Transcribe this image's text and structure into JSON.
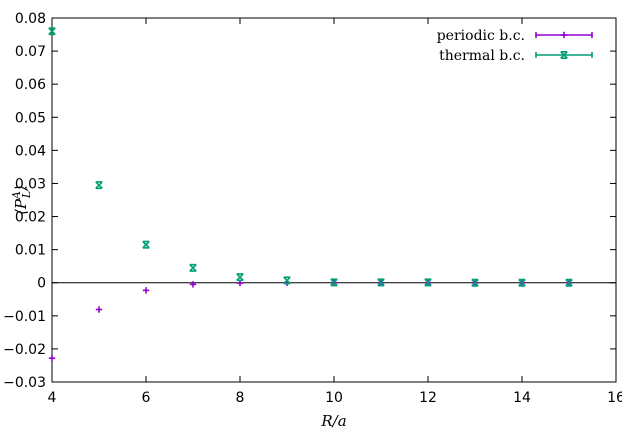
{
  "chart_data": {
    "type": "scatter",
    "xlabel": "R/a",
    "ylabel": "⟨P_L^A⟩",
    "xlim": [
      4,
      16
    ],
    "ylim": [
      -0.03,
      0.08
    ],
    "x_ticks": [
      4,
      6,
      8,
      10,
      12,
      14,
      16
    ],
    "y_ticks": [
      -0.03,
      -0.02,
      -0.01,
      0,
      0.01,
      0.02,
      0.03,
      0.04,
      0.05,
      0.06,
      0.07,
      0.08
    ],
    "x_tick_labels": [
      "4",
      "6",
      "8",
      "10",
      "12",
      "14",
      "16"
    ],
    "y_tick_labels": [
      "−0.03",
      "−0.02",
      "−0.01",
      "0",
      "0.01",
      "0.02",
      "0.03",
      "0.04",
      "0.05",
      "0.06",
      "0.07",
      "0.08"
    ],
    "zero_line": true,
    "grid": false,
    "legend_position": "top-right",
    "series": [
      {
        "name": "periodic b.c.",
        "color": "#9400D3",
        "marker": "plus",
        "x": [
          4,
          5,
          6,
          7,
          8,
          9,
          10,
          11,
          12,
          13,
          14,
          15
        ],
        "y": [
          -0.0228,
          -0.0081,
          -0.0023,
          -0.0005,
          -0.0001,
          0.0,
          0.0,
          0.0,
          0.0,
          0.0,
          0.0,
          0.0
        ]
      },
      {
        "name": "thermal b.c.",
        "color": "#009E73",
        "marker": "cross",
        "x": [
          4,
          5,
          6,
          7,
          8,
          9,
          10,
          11,
          12,
          13,
          14,
          15
        ],
        "y": [
          0.076,
          0.0295,
          0.0115,
          0.0045,
          0.0017,
          0.0007,
          0.0001,
          0.0001,
          0.0001,
          0.0,
          0.0,
          0.0
        ]
      }
    ]
  }
}
